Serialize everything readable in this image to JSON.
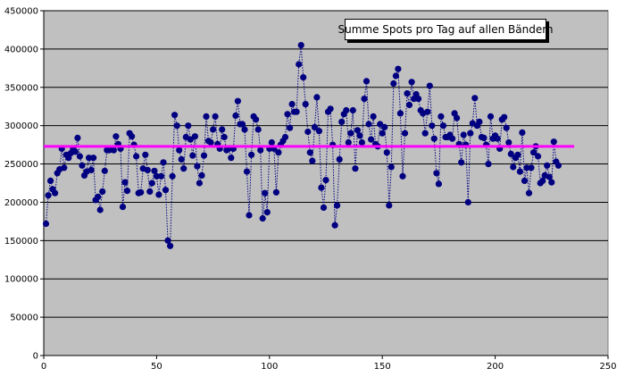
{
  "chart_data": {
    "type": "scatter",
    "title": "Summe Spots pro Tag auf allen Bändern",
    "xlabel": "",
    "ylabel": "",
    "xlim": [
      0,
      250
    ],
    "ylim": [
      0,
      450000
    ],
    "x_ticks": [
      0,
      50,
      100,
      150,
      200,
      250
    ],
    "y_ticks": [
      0,
      50000,
      100000,
      150000,
      200000,
      250000,
      300000,
      350000,
      400000,
      450000
    ],
    "grid": "horizontal",
    "legend": "none",
    "colors": {
      "plot_background": "#c0c0c0",
      "points": "#000080",
      "average_line": "#ff00ff",
      "grid": "#000000"
    },
    "average_line": {
      "x": [
        0,
        235
      ],
      "y": 273000
    },
    "series": [
      {
        "values": [
          [
            1,
            172000
          ],
          [
            2,
            209000
          ],
          [
            3,
            228000
          ],
          [
            4,
            217000
          ],
          [
            5,
            212000
          ],
          [
            6,
            238000
          ],
          [
            7,
            243000
          ],
          [
            8,
            270000
          ],
          [
            9,
            245000
          ],
          [
            10,
            262000
          ],
          [
            11,
            258000
          ],
          [
            12,
            264000
          ],
          [
            13,
            270000
          ],
          [
            14,
            266000
          ],
          [
            15,
            284000
          ],
          [
            16,
            260000
          ],
          [
            17,
            248000
          ],
          [
            18,
            235000
          ],
          [
            19,
            240000
          ],
          [
            20,
            258000
          ],
          [
            21,
            242000
          ],
          [
            22,
            258000
          ],
          [
            23,
            203000
          ],
          [
            24,
            207000
          ],
          [
            25,
            190000
          ],
          [
            26,
            214000
          ],
          [
            27,
            241000
          ],
          [
            28,
            268000
          ],
          [
            29,
            268000
          ],
          [
            30,
            270000
          ],
          [
            31,
            268000
          ],
          [
            32,
            286000
          ],
          [
            33,
            276000
          ],
          [
            34,
            270000
          ],
          [
            35,
            194000
          ],
          [
            36,
            226000
          ],
          [
            37,
            215000
          ],
          [
            38,
            290000
          ],
          [
            39,
            286000
          ],
          [
            40,
            275000
          ],
          [
            41,
            260000
          ],
          [
            42,
            212000
          ],
          [
            43,
            213000
          ],
          [
            44,
            244000
          ],
          [
            45,
            262000
          ],
          [
            46,
            242000
          ],
          [
            47,
            214000
          ],
          [
            48,
            225000
          ],
          [
            49,
            241000
          ],
          [
            50,
            234000
          ],
          [
            51,
            210000
          ],
          [
            52,
            234000
          ],
          [
            53,
            252000
          ],
          [
            54,
            216000
          ],
          [
            55,
            150000
          ],
          [
            56,
            143000
          ],
          [
            57,
            234000
          ],
          [
            58,
            314000
          ],
          [
            59,
            300000
          ],
          [
            60,
            268000
          ],
          [
            61,
            256000
          ],
          [
            62,
            244000
          ],
          [
            63,
            285000
          ],
          [
            64,
            300000
          ],
          [
            65,
            282000
          ],
          [
            66,
            261000
          ],
          [
            67,
            286000
          ],
          [
            68,
            247000
          ],
          [
            69,
            225000
          ],
          [
            70,
            235000
          ],
          [
            71,
            261000
          ],
          [
            72,
            312000
          ],
          [
            73,
            280000
          ],
          [
            74,
            278000
          ],
          [
            75,
            295000
          ],
          [
            76,
            312000
          ],
          [
            77,
            276000
          ],
          [
            78,
            270000
          ],
          [
            79,
            295000
          ],
          [
            80,
            285000
          ],
          [
            81,
            268000
          ],
          [
            82,
            270000
          ],
          [
            83,
            258000
          ],
          [
            84,
            270000
          ],
          [
            85,
            313000
          ],
          [
            86,
            332000
          ],
          [
            87,
            302000
          ],
          [
            88,
            302000
          ],
          [
            89,
            295000
          ],
          [
            90,
            240000
          ],
          [
            91,
            183000
          ],
          [
            92,
            262000
          ],
          [
            93,
            312000
          ],
          [
            94,
            308000
          ],
          [
            95,
            295000
          ],
          [
            96,
            268000
          ],
          [
            97,
            179000
          ],
          [
            98,
            212000
          ],
          [
            99,
            187000
          ],
          [
            100,
            270000
          ],
          [
            101,
            278000
          ],
          [
            102,
            270000
          ],
          [
            103,
            213000
          ],
          [
            104,
            265000
          ],
          [
            105,
            275000
          ],
          [
            106,
            280000
          ],
          [
            107,
            285000
          ],
          [
            108,
            315000
          ],
          [
            109,
            297000
          ],
          [
            110,
            328000
          ],
          [
            111,
            318000
          ],
          [
            112,
            318000
          ],
          [
            113,
            380000
          ],
          [
            114,
            405000
          ],
          [
            115,
            363000
          ],
          [
            116,
            328000
          ],
          [
            117,
            292000
          ],
          [
            118,
            265000
          ],
          [
            119,
            254000
          ],
          [
            120,
            298000
          ],
          [
            121,
            337000
          ],
          [
            122,
            293000
          ],
          [
            123,
            219000
          ],
          [
            124,
            193000
          ],
          [
            125,
            229000
          ],
          [
            126,
            318000
          ],
          [
            127,
            322000
          ],
          [
            128,
            275000
          ],
          [
            129,
            170000
          ],
          [
            130,
            196000
          ],
          [
            131,
            256000
          ],
          [
            132,
            305000
          ],
          [
            133,
            315000
          ],
          [
            134,
            320000
          ],
          [
            135,
            278000
          ],
          [
            136,
            290000
          ],
          [
            137,
            320000
          ],
          [
            138,
            244000
          ],
          [
            139,
            294000
          ],
          [
            140,
            287000
          ],
          [
            141,
            278000
          ],
          [
            142,
            335000
          ],
          [
            143,
            358000
          ],
          [
            144,
            302000
          ],
          [
            145,
            282000
          ],
          [
            146,
            312000
          ],
          [
            147,
            276000
          ],
          [
            148,
            273000
          ],
          [
            149,
            302000
          ],
          [
            150,
            290000
          ],
          [
            151,
            298000
          ],
          [
            152,
            265000
          ],
          [
            153,
            196000
          ],
          [
            154,
            246000
          ],
          [
            155,
            355000
          ],
          [
            156,
            365000
          ],
          [
            157,
            374000
          ],
          [
            158,
            316000
          ],
          [
            159,
            234000
          ],
          [
            160,
            290000
          ],
          [
            161,
            342000
          ],
          [
            162,
            327000
          ],
          [
            163,
            357000
          ],
          [
            164,
            335000
          ],
          [
            165,
            341000
          ],
          [
            166,
            335000
          ],
          [
            167,
            320000
          ],
          [
            168,
            316000
          ],
          [
            169,
            290000
          ],
          [
            170,
            318000
          ],
          [
            171,
            352000
          ],
          [
            172,
            300000
          ],
          [
            173,
            283000
          ],
          [
            174,
            238000
          ],
          [
            175,
            224000
          ],
          [
            176,
            312000
          ],
          [
            177,
            300000
          ],
          [
            178,
            285000
          ],
          [
            179,
            285000
          ],
          [
            180,
            288000
          ],
          [
            181,
            283000
          ],
          [
            182,
            316000
          ],
          [
            183,
            310000
          ],
          [
            184,
            276000
          ],
          [
            185,
            252000
          ],
          [
            186,
            288000
          ],
          [
            187,
            275000
          ],
          [
            188,
            200000
          ],
          [
            189,
            290000
          ],
          [
            190,
            303000
          ],
          [
            191,
            336000
          ],
          [
            192,
            300000
          ],
          [
            193,
            305000
          ],
          [
            194,
            285000
          ],
          [
            195,
            284000
          ],
          [
            196,
            275000
          ],
          [
            197,
            250000
          ],
          [
            198,
            312000
          ],
          [
            199,
            283000
          ],
          [
            200,
            287000
          ],
          [
            201,
            283000
          ],
          [
            202,
            270000
          ],
          [
            203,
            308000
          ],
          [
            204,
            311000
          ],
          [
            205,
            297000
          ],
          [
            206,
            278000
          ],
          [
            207,
            263000
          ],
          [
            208,
            246000
          ],
          [
            209,
            258000
          ],
          [
            210,
            262000
          ],
          [
            211,
            240000
          ],
          [
            212,
            291000
          ],
          [
            213,
            228000
          ],
          [
            214,
            245000
          ],
          [
            215,
            212000
          ],
          [
            216,
            245000
          ],
          [
            217,
            265000
          ],
          [
            218,
            273000
          ],
          [
            219,
            260000
          ],
          [
            220,
            225000
          ],
          [
            221,
            228000
          ],
          [
            222,
            235000
          ],
          [
            223,
            248000
          ],
          [
            224,
            233000
          ],
          [
            225,
            226000
          ],
          [
            226,
            279000
          ],
          [
            227,
            253000
          ],
          [
            228,
            248000
          ]
        ]
      }
    ]
  }
}
